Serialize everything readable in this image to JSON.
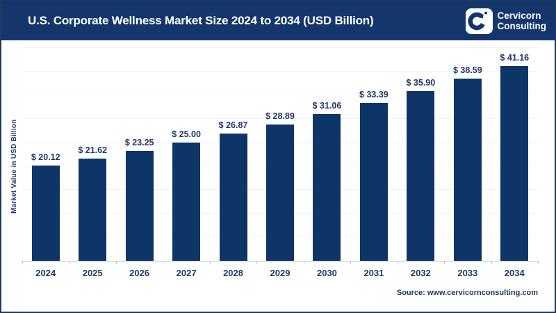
{
  "header": {
    "title": "U.S. Corporate Wellness Market Size 2024 to 2034 (USD Billion)",
    "brand_line1": "Cervicorn",
    "brand_line2": "Consulting"
  },
  "chart_data": {
    "type": "bar",
    "title": "U.S. Corporate Wellness Market Size 2024 to 2034 (USD Billion)",
    "categories": [
      "2024",
      "2025",
      "2026",
      "2027",
      "2028",
      "2029",
      "2030",
      "2031",
      "2032",
      "2033",
      "2034"
    ],
    "values": [
      20.12,
      21.62,
      23.25,
      25.0,
      26.87,
      28.89,
      31.06,
      33.39,
      35.9,
      38.59,
      41.16
    ],
    "value_labels": [
      "$ 20.12",
      "$ 21.62",
      "$ 23.25",
      "$ 25.00",
      "$ 26.87",
      "$ 28.89",
      "$ 31.06",
      "$ 33.39",
      "$ 35.90",
      "$ 38.59",
      "$ 41.16"
    ],
    "xlabel": "",
    "ylabel": "Market Value in USD Billion",
    "ylim": [
      0,
      45
    ],
    "gridline_step": 5,
    "grid": "horizontal",
    "legend_position": "none"
  },
  "footer": {
    "source": "Source: www.cervicornconsulting.com"
  },
  "colors": {
    "header_bg": "#14366B",
    "bar": "#0E3567",
    "label_text": "#1F3864",
    "title_text": "#FFFFFF",
    "border": "#1F3864",
    "gridline": "#F4F1F4",
    "axis_line": "#C9C9C9",
    "background": "#FFFFFF"
  }
}
